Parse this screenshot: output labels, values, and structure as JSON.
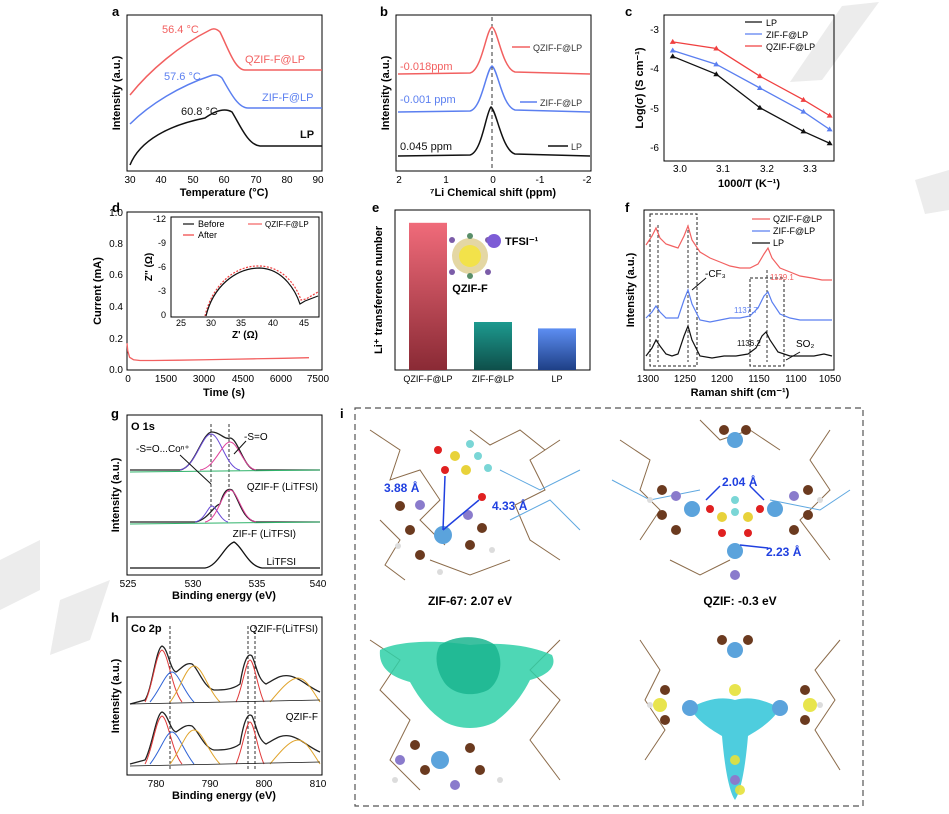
{
  "panels": {
    "a": {
      "letter": "a",
      "xlabel": "Temperature (°C)",
      "ylabel": "Intensity (a.u.)",
      "xticks": [
        "30",
        "40",
        "50",
        "60",
        "70",
        "80",
        "90"
      ],
      "labels": {
        "q": "QZIF-F@LP",
        "z": "ZIF-F@LP",
        "lp": "LP"
      },
      "peaks": {
        "q": "56.4 °C",
        "z": "57.6 °C",
        "lp": "60.8 °C"
      }
    },
    "b": {
      "letter": "b",
      "xlabel": "⁷Li Chemical shift (ppm)",
      "ylabel": "Intensity (a.u.)",
      "xticks": [
        "2",
        "1",
        "0",
        "-1",
        "-2"
      ],
      "labels": {
        "q": "QZIF-F@LP",
        "z": "ZIF-F@LP",
        "lp": "LP"
      },
      "shifts": {
        "q": "-0.018ppm",
        "z": "-0.001 ppm",
        "lp": "0.045 ppm"
      }
    },
    "c": {
      "letter": "c",
      "xlabel": "1000/T  (K⁻¹)",
      "ylabel": "Log(σ)  (S cm⁻¹)",
      "xticks": [
        "3.0",
        "3.1",
        "3.2",
        "3.3"
      ],
      "yticks": [
        "-3",
        "-4",
        "-5",
        "-6"
      ],
      "legend": [
        "LP",
        "ZIF-F@LP",
        "QZIF-F@LP"
      ]
    },
    "d": {
      "letter": "d",
      "xlabel": "Time (s)",
      "ylabel": "Current (mA)",
      "xticks": [
        "0",
        "1500",
        "3000",
        "4500",
        "6000",
        "7500"
      ],
      "yticks": [
        "0.0",
        "0.2",
        "0.4",
        "0.6",
        "0.8",
        "1.0"
      ],
      "inset": {
        "legend_before": "Before",
        "legend_after": "After",
        "legend_sample": "QZIF-F@LP",
        "xlabel": "Z' (Ω)",
        "ylabel": "Z'' (Ω)",
        "xticks": [
          "25",
          "30",
          "35",
          "40",
          "45"
        ],
        "yticks": [
          "-12",
          "-9",
          "-6",
          "-3",
          "0"
        ]
      }
    },
    "e": {
      "letter": "e",
      "ylabel": "Li⁺ transference number",
      "insert_label": "QZIF-F",
      "anion_label": "TFSI⁻¹"
    },
    "f": {
      "letter": "f",
      "xlabel": "Raman shift (cm⁻¹)",
      "ylabel": "Intensity (a.u.)",
      "xticks": [
        "1300",
        "1250",
        "1200",
        "1150",
        "1100",
        "1050"
      ],
      "legend": [
        "QZIF-F@LP",
        "ZIF-F@LP",
        "LP"
      ],
      "ann_cf3": "-CF₃",
      "ann_so2": "SO₂",
      "peaks": {
        "q": "1139.1",
        "z": "1137.7",
        "lp": "1136.2"
      }
    },
    "g": {
      "letter": "g",
      "title": "O 1s",
      "xlabel": "Binding energy (eV)",
      "ylabel": "Intensity (a.u.)",
      "xticks": [
        "525",
        "530",
        "535",
        "540"
      ],
      "ann_left": "-S=O...Coⁿ⁺",
      "ann_right": "-S=O",
      "labels": {
        "q": "QZIF-F (LiTFSI)",
        "z": "ZIF-F (LiTFSI)",
        "l": "LiTFSI"
      }
    },
    "h": {
      "letter": "h",
      "title": "Co 2p",
      "xlabel": "Binding energy (eV)",
      "ylabel": "Intensity (a.u.)",
      "xticks": [
        "780",
        "790",
        "800",
        "810"
      ],
      "labels": {
        "top": "QZIF-F(LiTFSI)",
        "bottom": "QZIF-F"
      }
    },
    "i": {
      "letter": "i",
      "d1": "3.88 Å",
      "d2": "4.33 Å",
      "d3": "2.04 Å",
      "d4": "2.23 Å",
      "cap_left": "ZIF-67: 2.07 eV",
      "cap_right": "QZIF: -0.3 eV"
    }
  },
  "chart_data": [
    {
      "type": "line",
      "panel": "a",
      "xlabel": "Temperature (°C)",
      "ylabel": "Intensity (a.u.)",
      "xlim": [
        30,
        90
      ],
      "series": [
        {
          "name": "QZIF-F@LP",
          "color": "#f26060",
          "peak_x": 56.4
        },
        {
          "name": "ZIF-F@LP",
          "color": "#5b7ff0",
          "peak_x": 57.6
        },
        {
          "name": "LP",
          "color": "#111111",
          "peak_x": 60.8
        }
      ]
    },
    {
      "type": "line",
      "panel": "b",
      "xlabel": "⁷Li Chemical shift (ppm)",
      "ylabel": "Intensity (a.u.)",
      "xlim": [
        2,
        -2
      ],
      "series": [
        {
          "name": "QZIF-F@LP",
          "color": "#f26060",
          "peak_x": -0.018
        },
        {
          "name": "ZIF-F@LP",
          "color": "#5b7ff0",
          "peak_x": -0.001
        },
        {
          "name": "LP",
          "color": "#111111",
          "peak_x": 0.045
        }
      ]
    },
    {
      "type": "line",
      "panel": "c",
      "xlabel": "1000/T  (K⁻¹)",
      "ylabel": "Log(σ)  (S cm⁻¹)",
      "xlim": [
        2.98,
        3.37
      ],
      "ylim": [
        -6.3,
        -2.6
      ],
      "x": [
        3.0,
        3.1,
        3.2,
        3.3,
        3.36
      ],
      "series": [
        {
          "name": "LP",
          "color": "#111111",
          "values": [
            -3.65,
            -4.1,
            -4.95,
            -5.55,
            -5.85
          ]
        },
        {
          "name": "ZIF-F@LP",
          "color": "#5b7ff0",
          "values": [
            -3.5,
            -3.85,
            -4.45,
            -5.05,
            -5.5
          ]
        },
        {
          "name": "QZIF-F@LP",
          "color": "#f04040",
          "values": [
            -3.28,
            -3.45,
            -4.15,
            -4.75,
            -5.15
          ]
        }
      ]
    },
    {
      "type": "line",
      "panel": "d",
      "xlabel": "Time (s)",
      "ylabel": "Current (mA)",
      "xlim": [
        0,
        7500
      ],
      "ylim": [
        0,
        1.0
      ],
      "x": [
        0,
        30,
        100,
        250,
        500,
        1000,
        2000,
        3000,
        4000,
        5000,
        6000,
        7000
      ],
      "series": [
        {
          "name": "QZIF-F@LP",
          "color": "#f26060",
          "values": [
            0.17,
            0.12,
            0.08,
            0.065,
            0.06,
            0.06,
            0.062,
            0.065,
            0.068,
            0.071,
            0.074,
            0.078
          ]
        }
      ]
    },
    {
      "type": "line",
      "panel": "d-inset",
      "xlabel": "Z' (Ω)",
      "ylabel": "Z'' (Ω)",
      "xlim": [
        25,
        47
      ],
      "ylim": [
        -12,
        0
      ],
      "series": [
        {
          "name": "Before",
          "color": "#111111"
        },
        {
          "name": "After",
          "color": "#f04040"
        }
      ]
    },
    {
      "type": "bar",
      "panel": "e",
      "ylabel": "Li⁺ transference number",
      "categories": [
        "QZIF-F@LP",
        "ZIF-F@LP",
        "LP"
      ],
      "values": [
        0.46,
        0.15,
        0.13
      ],
      "ylim": [
        0,
        0.5
      ],
      "colors": [
        "#e35b6b",
        "#1f8c82",
        "#5e8ff0"
      ]
    },
    {
      "type": "line",
      "panel": "f",
      "xlabel": "Raman shift (cm⁻¹)",
      "ylabel": "Intensity (a.u.)",
      "xlim": [
        1300,
        1050
      ],
      "series": [
        {
          "name": "QZIF-F@LP",
          "color": "#f26060",
          "peak_x": 1139.1
        },
        {
          "name": "ZIF-F@LP",
          "color": "#5b7ff0",
          "peak_x": 1137.7
        },
        {
          "name": "LP",
          "color": "#111111",
          "peak_x": 1136.2
        }
      ]
    },
    {
      "type": "line",
      "panel": "g",
      "xlabel": "Binding energy (eV)",
      "ylabel": "Intensity (a.u.)",
      "xlim": [
        525,
        540
      ],
      "series": [
        {
          "name": "QZIF-F (LiTFSI)"
        },
        {
          "name": "ZIF-F (LiTFSI)"
        },
        {
          "name": "LiTFSI"
        }
      ]
    },
    {
      "type": "line",
      "panel": "h",
      "xlabel": "Binding energy (eV)",
      "ylabel": "Intensity (a.u.)",
      "xlim": [
        775,
        810
      ],
      "series": [
        {
          "name": "QZIF-F(LiTFSI)"
        },
        {
          "name": "QZIF-F"
        }
      ]
    }
  ]
}
